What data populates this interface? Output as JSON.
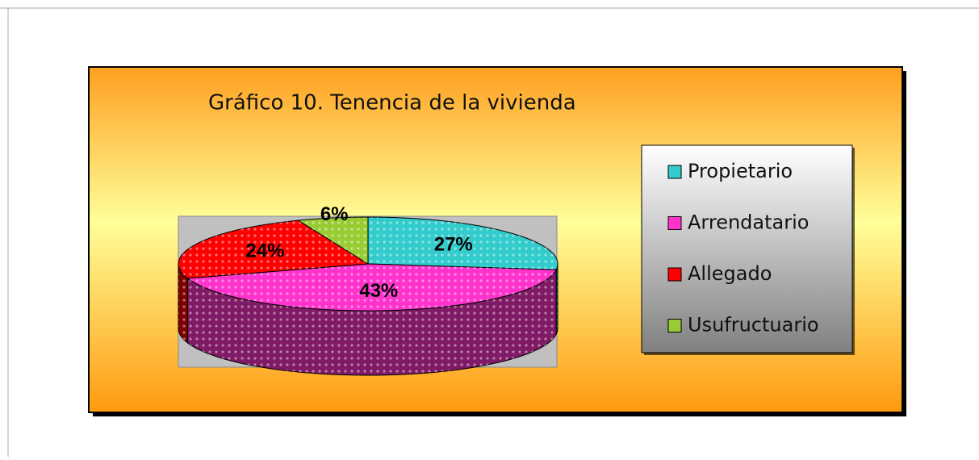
{
  "chart_data": {
    "type": "pie",
    "title": "Gráfico 10. Tenencia de la vivienda",
    "categories": [
      "Propietario",
      "Arrendatario",
      "Allegado",
      "Usufructuario"
    ],
    "values": [
      27,
      43,
      24,
      6
    ],
    "value_labels": [
      "27%",
      "43%",
      "24%",
      "6%"
    ],
    "colors": [
      "#33cccc",
      "#ff33cc",
      "#ff0000",
      "#99cc33"
    ],
    "legend": "right"
  }
}
